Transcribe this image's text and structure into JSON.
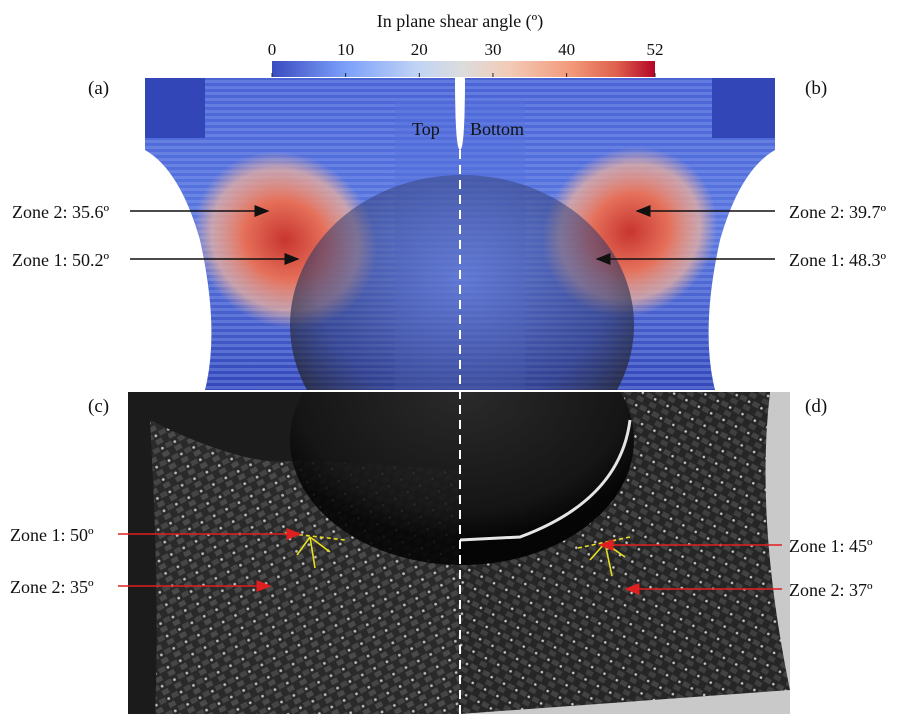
{
  "colorbar": {
    "title": "In plane shear angle (º)",
    "ticks": [
      "0",
      "10",
      "20",
      "30",
      "40",
      "52"
    ],
    "tick_values": [
      0,
      10,
      20,
      30,
      40,
      52
    ],
    "min": 0,
    "max": 52,
    "colors": {
      "low": "#3b4cc0",
      "mid": "#dddcdc",
      "high": "#b40426"
    }
  },
  "panels": {
    "a": {
      "label": "(a)",
      "side_title": "Top"
    },
    "b": {
      "label": "(b)",
      "side_title": "Bottom"
    },
    "c": {
      "label": "(c)"
    },
    "d": {
      "label": "(d)"
    }
  },
  "annotations": {
    "a_zone2": {
      "text": "Zone 2: 35.6º",
      "value": 35.6
    },
    "a_zone1": {
      "text": "Zone 1: 50.2º",
      "value": 50.2
    },
    "b_zone2": {
      "text": "Zone 2: 39.7º",
      "value": 39.7
    },
    "b_zone1": {
      "text": "Zone 1: 48.3º",
      "value": 48.3
    },
    "c_zone1": {
      "text": "Zone 1: 50º",
      "value": 50
    },
    "c_zone2": {
      "text": "Zone 2: 35º",
      "value": 35
    },
    "d_zone1": {
      "text": "Zone 1: 45º",
      "value": 45
    },
    "d_zone2": {
      "text": "Zone 2: 37º",
      "value": 37
    }
  },
  "colors": {
    "arrow_simulation": "#111111",
    "arrow_experiment": "#e02020",
    "measure_lines": "#e8e020",
    "divider": "#ffffff"
  }
}
